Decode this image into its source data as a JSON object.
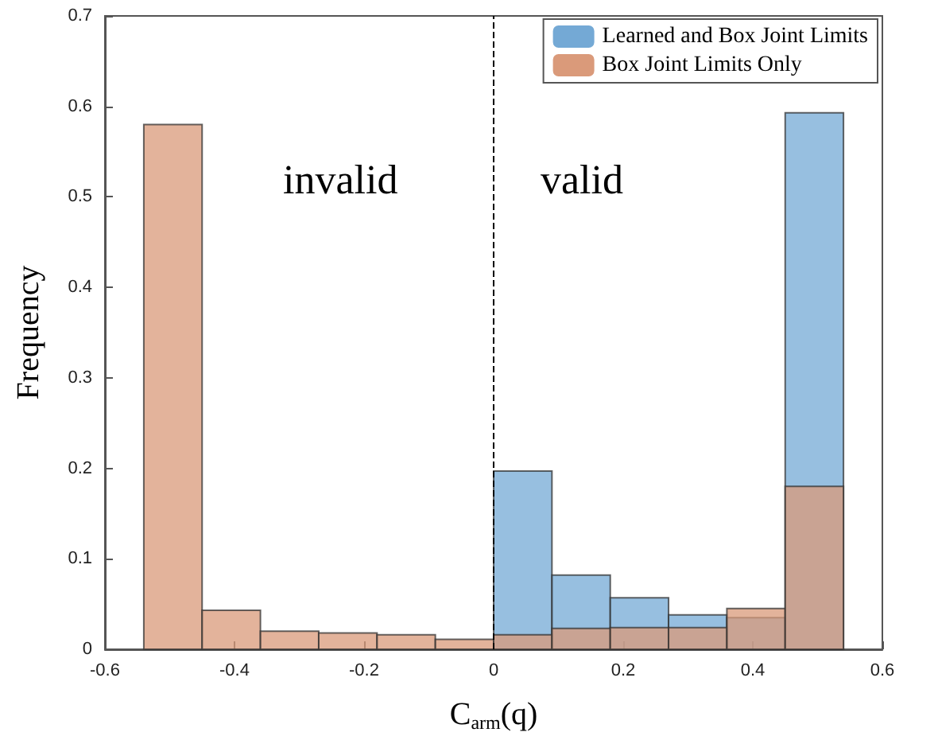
{
  "chart_data": {
    "type": "histogram",
    "xlabel": "C$_{arm}$(q)",
    "ylabel": "Frequency",
    "bins": [
      -0.54,
      -0.45,
      -0.36,
      -0.27,
      -0.18,
      -0.09,
      0,
      0.09,
      0.18,
      0.27,
      0.36,
      0.45,
      0.54
    ],
    "series": [
      {
        "name": "Learned and Box Joint Limits",
        "color": "#74a9d5",
        "values": [
          null,
          null,
          null,
          null,
          null,
          null,
          0.197,
          0.082,
          0.057,
          0.038,
          0.035,
          0.593
        ]
      },
      {
        "name": "Box Joint Limits Only",
        "color": "#da9a7a",
        "values": [
          0.58,
          0.043,
          0.02,
          0.018,
          0.016,
          0.011,
          0.016,
          0.023,
          0.024,
          0.024,
          0.045,
          0.18
        ]
      }
    ],
    "xlim": [
      -0.6,
      0.6
    ],
    "xticks": [
      -0.6,
      -0.4,
      -0.2,
      0,
      0.2,
      0.4,
      0.6
    ],
    "ylim": [
      0,
      0.7
    ],
    "yticks": [
      0,
      0.1,
      0.2,
      0.3,
      0.4,
      0.5,
      0.6,
      0.7
    ],
    "ref_lines": [
      {
        "axis": "x",
        "value": 0,
        "line_style": "dashed",
        "color": "#000000"
      }
    ],
    "annotations": [
      "invalid",
      "valid"
    ],
    "legend": "top right"
  }
}
